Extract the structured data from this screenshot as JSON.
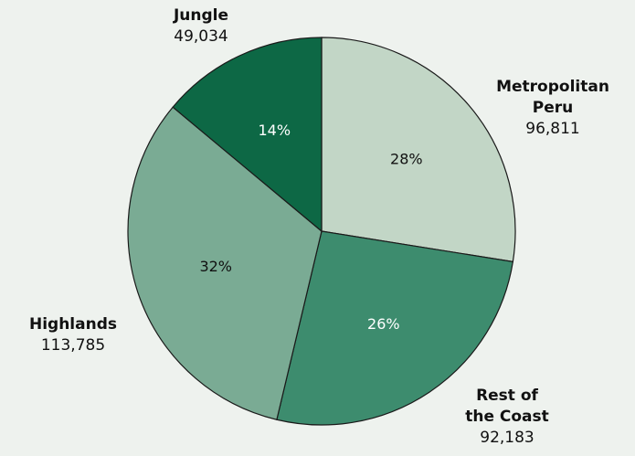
{
  "chart_data": {
    "type": "pie",
    "slices": [
      {
        "key": "metro",
        "name_lines": [
          "Metropolitan",
          "Peru"
        ],
        "value": 96811,
        "value_label": "96,811",
        "percent_label": "28%",
        "color": "#c2d6c6",
        "percent_color": "#111111"
      },
      {
        "key": "rest",
        "name_lines": [
          "Rest of",
          "the Coast"
        ],
        "value": 92183,
        "value_label": "92,183",
        "percent_label": "26%",
        "color": "#3d8c6e",
        "percent_color": "#ffffff"
      },
      {
        "key": "highlands",
        "name_lines": [
          "Highlands"
        ],
        "value": 113785,
        "value_label": "113,785",
        "percent_label": "32%",
        "color": "#7aab94",
        "percent_color": "#111111"
      },
      {
        "key": "jungle",
        "name_lines": [
          "Jungle"
        ],
        "value": 49034,
        "value_label": "49,034",
        "percent_label": "14%",
        "color": "#0d6845",
        "percent_color": "#ffffff"
      }
    ],
    "start": "12 o'clock",
    "direction": "clockwise",
    "legend": "none",
    "title": ""
  }
}
